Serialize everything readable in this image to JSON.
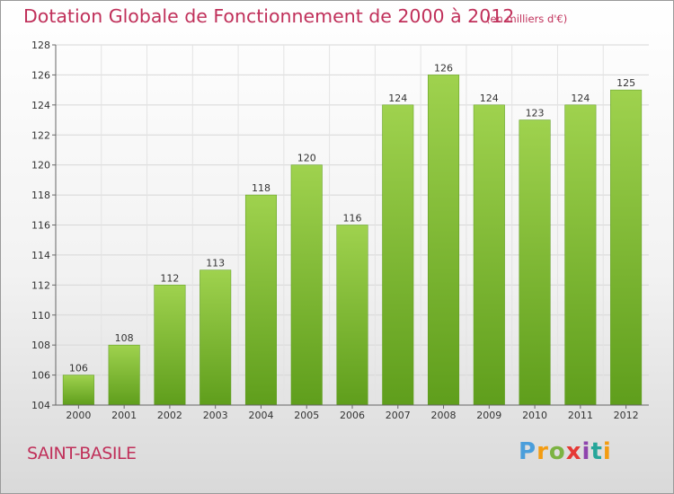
{
  "header": {
    "title": "Dotation Globale de Fonctionnement de 2000 à 2012",
    "unit": "(en milliers d'€)"
  },
  "footer": {
    "commune": "SAINT-BASILE",
    "logo_text": "Proxiti"
  },
  "colors": {
    "bar_light": "#9fd24e",
    "bar_dark": "#5f9e1c",
    "title": "#c0305a"
  },
  "chart_data": {
    "type": "bar",
    "title": "Dotation Globale de Fonctionnement de 2000 à 2012",
    "subtitle": "(en milliers d'€)",
    "xlabel": "",
    "ylabel": "",
    "categories": [
      "2000",
      "2001",
      "2002",
      "2003",
      "2004",
      "2005",
      "2006",
      "2007",
      "2008",
      "2009",
      "2010",
      "2011",
      "2012"
    ],
    "values": [
      106,
      108,
      112,
      113,
      118,
      120,
      116,
      124,
      126,
      124,
      123,
      124,
      125
    ],
    "ylim": [
      104,
      128
    ],
    "yticks": [
      104,
      106,
      108,
      110,
      112,
      114,
      116,
      118,
      120,
      122,
      124,
      126,
      128
    ],
    "grid": true,
    "legend": "none"
  }
}
